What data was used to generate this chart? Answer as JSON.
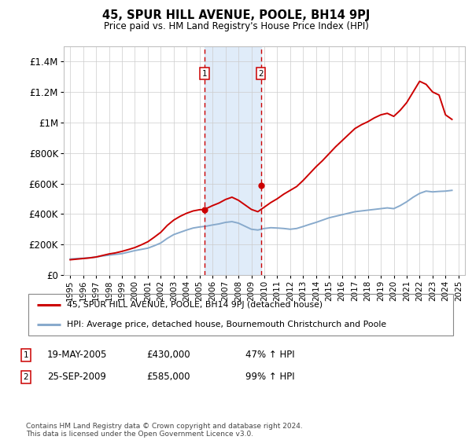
{
  "title": "45, SPUR HILL AVENUE, POOLE, BH14 9PJ",
  "subtitle": "Price paid vs. HM Land Registry's House Price Index (HPI)",
  "legend_line1": "45, SPUR HILL AVENUE, POOLE, BH14 9PJ (detached house)",
  "legend_line2": "HPI: Average price, detached house, Bournemouth Christchurch and Poole",
  "table_rows": [
    {
      "num": "1",
      "date": "19-MAY-2005",
      "price": "£430,000",
      "hpi": "47% ↑ HPI"
    },
    {
      "num": "2",
      "date": "25-SEP-2009",
      "price": "£585,000",
      "hpi": "99% ↑ HPI"
    }
  ],
  "footnote": "Contains HM Land Registry data © Crown copyright and database right 2024.\nThis data is licensed under the Open Government Licence v3.0.",
  "price_line_color": "#cc0000",
  "hpi_line_color": "#88aacc",
  "sale1_x": 2005.38,
  "sale1_y": 430000,
  "sale2_x": 2009.73,
  "sale2_y": 585000,
  "shade_x1": 2005.38,
  "shade_x2": 2009.73,
  "ylim": [
    0,
    1500000
  ],
  "xlim": [
    1994.5,
    2025.5
  ],
  "yticks": [
    0,
    200000,
    400000,
    600000,
    800000,
    1000000,
    1200000,
    1400000
  ],
  "ytick_labels": [
    "£0",
    "£200K",
    "£400K",
    "£600K",
    "£800K",
    "£1M",
    "£1.2M",
    "£1.4M"
  ],
  "xticks": [
    1995,
    1996,
    1997,
    1998,
    1999,
    2000,
    2001,
    2002,
    2003,
    2004,
    2005,
    2006,
    2007,
    2008,
    2009,
    2010,
    2011,
    2012,
    2013,
    2014,
    2015,
    2016,
    2017,
    2018,
    2019,
    2020,
    2021,
    2022,
    2023,
    2024,
    2025
  ],
  "hpi_data": [
    [
      1995,
      105000
    ],
    [
      1995.5,
      108000
    ],
    [
      1996,
      110000
    ],
    [
      1996.5,
      113000
    ],
    [
      1997,
      118000
    ],
    [
      1997.5,
      125000
    ],
    [
      1998,
      130000
    ],
    [
      1998.5,
      135000
    ],
    [
      1999,
      140000
    ],
    [
      1999.5,
      150000
    ],
    [
      2000,
      160000
    ],
    [
      2000.5,
      168000
    ],
    [
      2001,
      176000
    ],
    [
      2001.5,
      192000
    ],
    [
      2002,
      210000
    ],
    [
      2002.5,
      240000
    ],
    [
      2003,
      265000
    ],
    [
      2003.5,
      280000
    ],
    [
      2004,
      295000
    ],
    [
      2004.5,
      308000
    ],
    [
      2005,
      315000
    ],
    [
      2005.5,
      320000
    ],
    [
      2006,
      328000
    ],
    [
      2006.5,
      335000
    ],
    [
      2007,
      345000
    ],
    [
      2007.5,
      350000
    ],
    [
      2008,
      340000
    ],
    [
      2008.5,
      320000
    ],
    [
      2009,
      300000
    ],
    [
      2009.5,
      295000
    ],
    [
      2010,
      305000
    ],
    [
      2010.5,
      310000
    ],
    [
      2011,
      308000
    ],
    [
      2011.5,
      305000
    ],
    [
      2012,
      300000
    ],
    [
      2012.5,
      305000
    ],
    [
      2013,
      318000
    ],
    [
      2013.5,
      332000
    ],
    [
      2014,
      345000
    ],
    [
      2014.5,
      360000
    ],
    [
      2015,
      375000
    ],
    [
      2015.5,
      385000
    ],
    [
      2016,
      395000
    ],
    [
      2016.5,
      405000
    ],
    [
      2017,
      415000
    ],
    [
      2017.5,
      420000
    ],
    [
      2018,
      425000
    ],
    [
      2018.5,
      430000
    ],
    [
      2019,
      435000
    ],
    [
      2019.5,
      440000
    ],
    [
      2020,
      435000
    ],
    [
      2020.5,
      455000
    ],
    [
      2021,
      480000
    ],
    [
      2021.5,
      510000
    ],
    [
      2022,
      535000
    ],
    [
      2022.5,
      550000
    ],
    [
      2023,
      545000
    ],
    [
      2023.5,
      548000
    ],
    [
      2024,
      550000
    ],
    [
      2024.5,
      555000
    ]
  ],
  "price_data": [
    [
      1995,
      100000
    ],
    [
      1995.5,
      104000
    ],
    [
      1996,
      108000
    ],
    [
      1996.5,
      112000
    ],
    [
      1997,
      118000
    ],
    [
      1997.5,
      128000
    ],
    [
      1998,
      138000
    ],
    [
      1998.5,
      145000
    ],
    [
      1999,
      155000
    ],
    [
      1999.5,
      167000
    ],
    [
      2000,
      180000
    ],
    [
      2000.5,
      198000
    ],
    [
      2001,
      218000
    ],
    [
      2001.5,
      248000
    ],
    [
      2002,
      280000
    ],
    [
      2002.5,
      325000
    ],
    [
      2003,
      360000
    ],
    [
      2003.5,
      385000
    ],
    [
      2004,
      405000
    ],
    [
      2004.5,
      420000
    ],
    [
      2005,
      428000
    ],
    [
      2005.38,
      430000
    ],
    [
      2005.5,
      435000
    ],
    [
      2006,
      455000
    ],
    [
      2006.5,
      472000
    ],
    [
      2007,
      495000
    ],
    [
      2007.5,
      510000
    ],
    [
      2008,
      490000
    ],
    [
      2008.5,
      460000
    ],
    [
      2009,
      430000
    ],
    [
      2009.5,
      415000
    ],
    [
      2010,
      445000
    ],
    [
      2010.5,
      475000
    ],
    [
      2011,
      500000
    ],
    [
      2011.5,
      530000
    ],
    [
      2012,
      555000
    ],
    [
      2012.5,
      580000
    ],
    [
      2013,
      620000
    ],
    [
      2013.5,
      665000
    ],
    [
      2014,
      710000
    ],
    [
      2014.5,
      750000
    ],
    [
      2015,
      795000
    ],
    [
      2015.5,
      840000
    ],
    [
      2016,
      880000
    ],
    [
      2016.5,
      920000
    ],
    [
      2017,
      960000
    ],
    [
      2017.5,
      985000
    ],
    [
      2018,
      1005000
    ],
    [
      2018.5,
      1030000
    ],
    [
      2019,
      1050000
    ],
    [
      2019.5,
      1060000
    ],
    [
      2020,
      1040000
    ],
    [
      2020.5,
      1080000
    ],
    [
      2021,
      1130000
    ],
    [
      2021.5,
      1200000
    ],
    [
      2022,
      1270000
    ],
    [
      2022.5,
      1250000
    ],
    [
      2023,
      1200000
    ],
    [
      2023.5,
      1180000
    ],
    [
      2024,
      1050000
    ],
    [
      2024.5,
      1020000
    ]
  ]
}
